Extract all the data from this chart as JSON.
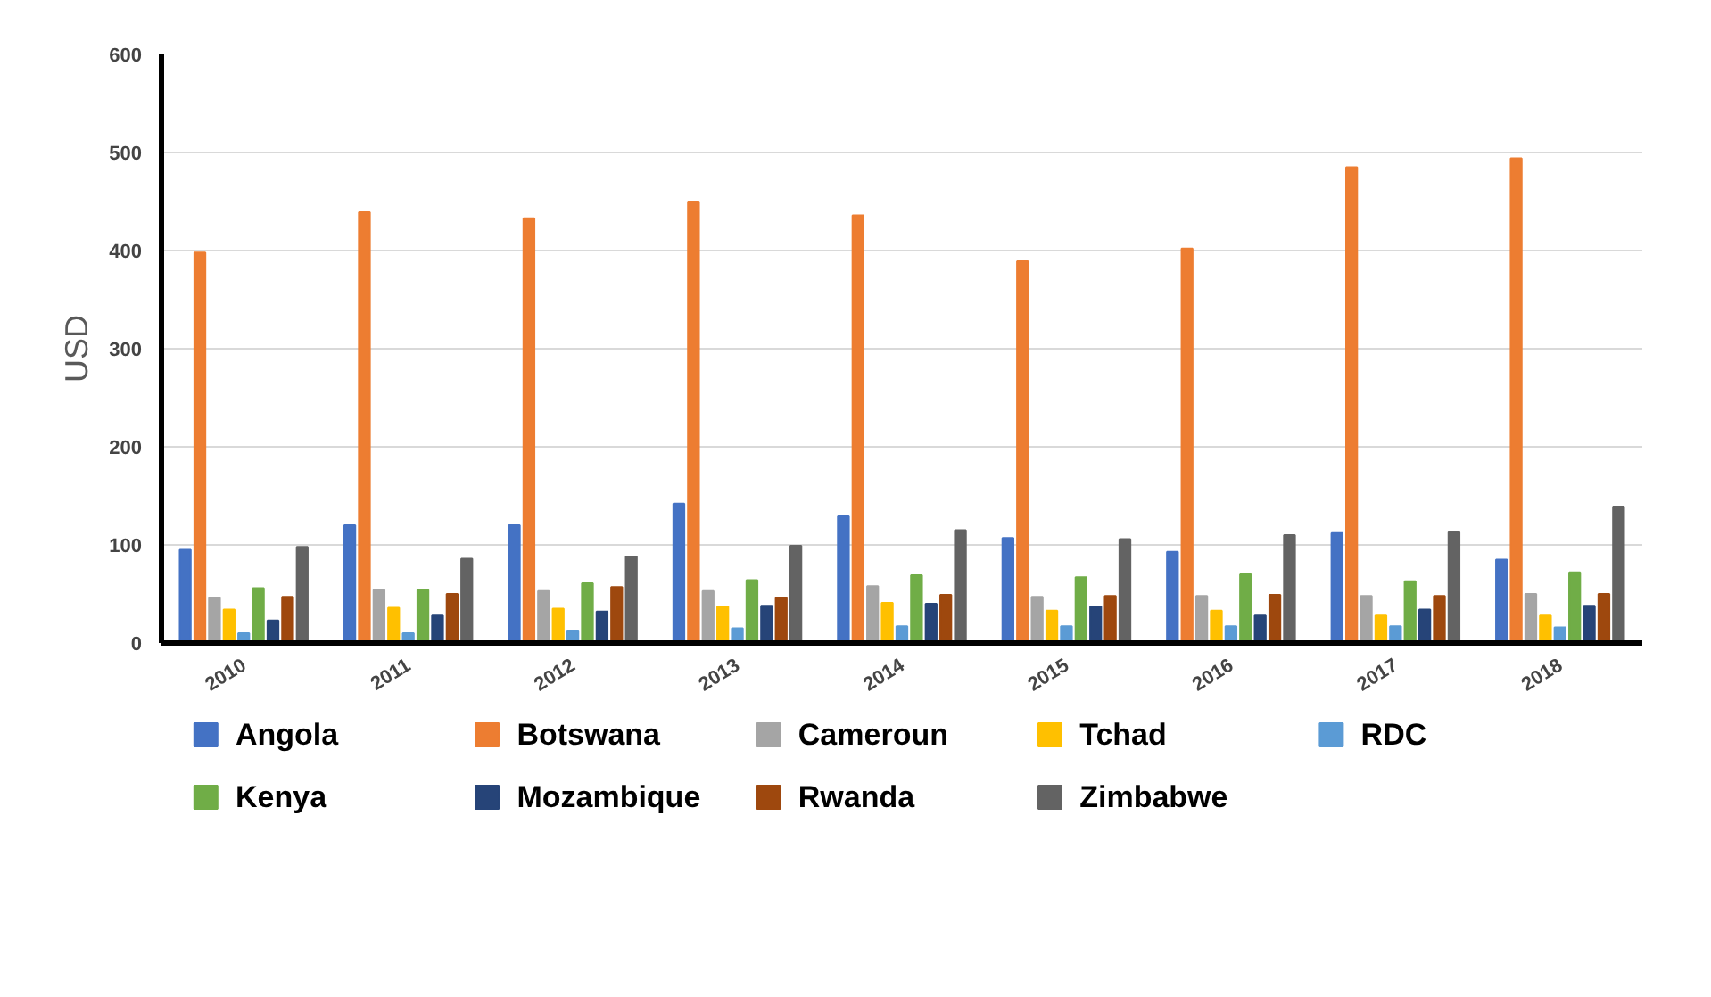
{
  "chart_data": {
    "type": "bar",
    "ylabel": "USD",
    "categories": [
      "2010",
      "2011",
      "2012",
      "2013",
      "2014",
      "2015",
      "2016",
      "2017",
      "2018"
    ],
    "series": [
      {
        "name": "Angola",
        "color": "#4472c4",
        "values": [
          95,
          120,
          120,
          142,
          129,
          107,
          93,
          112,
          85
        ]
      },
      {
        "name": "Botswana",
        "color": "#ed7d31",
        "values": [
          398,
          439,
          433,
          450,
          436,
          389,
          402,
          485,
          494
        ]
      },
      {
        "name": "Cameroun",
        "color": "#a5a5a5",
        "values": [
          46,
          54,
          53,
          53,
          58,
          47,
          48,
          48,
          50
        ]
      },
      {
        "name": "Tchad",
        "color": "#ffc000",
        "values": [
          34,
          36,
          35,
          37,
          41,
          33,
          33,
          28,
          28
        ]
      },
      {
        "name": "RDC",
        "color": "#5b9bd5",
        "values": [
          10,
          10,
          12,
          15,
          17,
          17,
          17,
          17,
          16
        ]
      },
      {
        "name": "Kenya",
        "color": "#70ad47",
        "values": [
          56,
          54,
          61,
          64,
          69,
          67,
          70,
          63,
          72
        ]
      },
      {
        "name": "Mozambique",
        "color": "#264478",
        "values": [
          23,
          28,
          32,
          38,
          40,
          37,
          28,
          34,
          38
        ]
      },
      {
        "name": "Rwanda",
        "color": "#9e480e",
        "values": [
          47,
          50,
          57,
          46,
          49,
          48,
          49,
          48,
          50
        ]
      },
      {
        "name": "Zimbabwe",
        "color": "#636363",
        "values": [
          98,
          86,
          88,
          99,
          115,
          106,
          110,
          113,
          139
        ]
      }
    ],
    "ylim": [
      0,
      600
    ],
    "yticks": [
      0,
      100,
      200,
      300,
      400,
      500,
      600
    ],
    "grid": "y",
    "legend": "bottom"
  }
}
